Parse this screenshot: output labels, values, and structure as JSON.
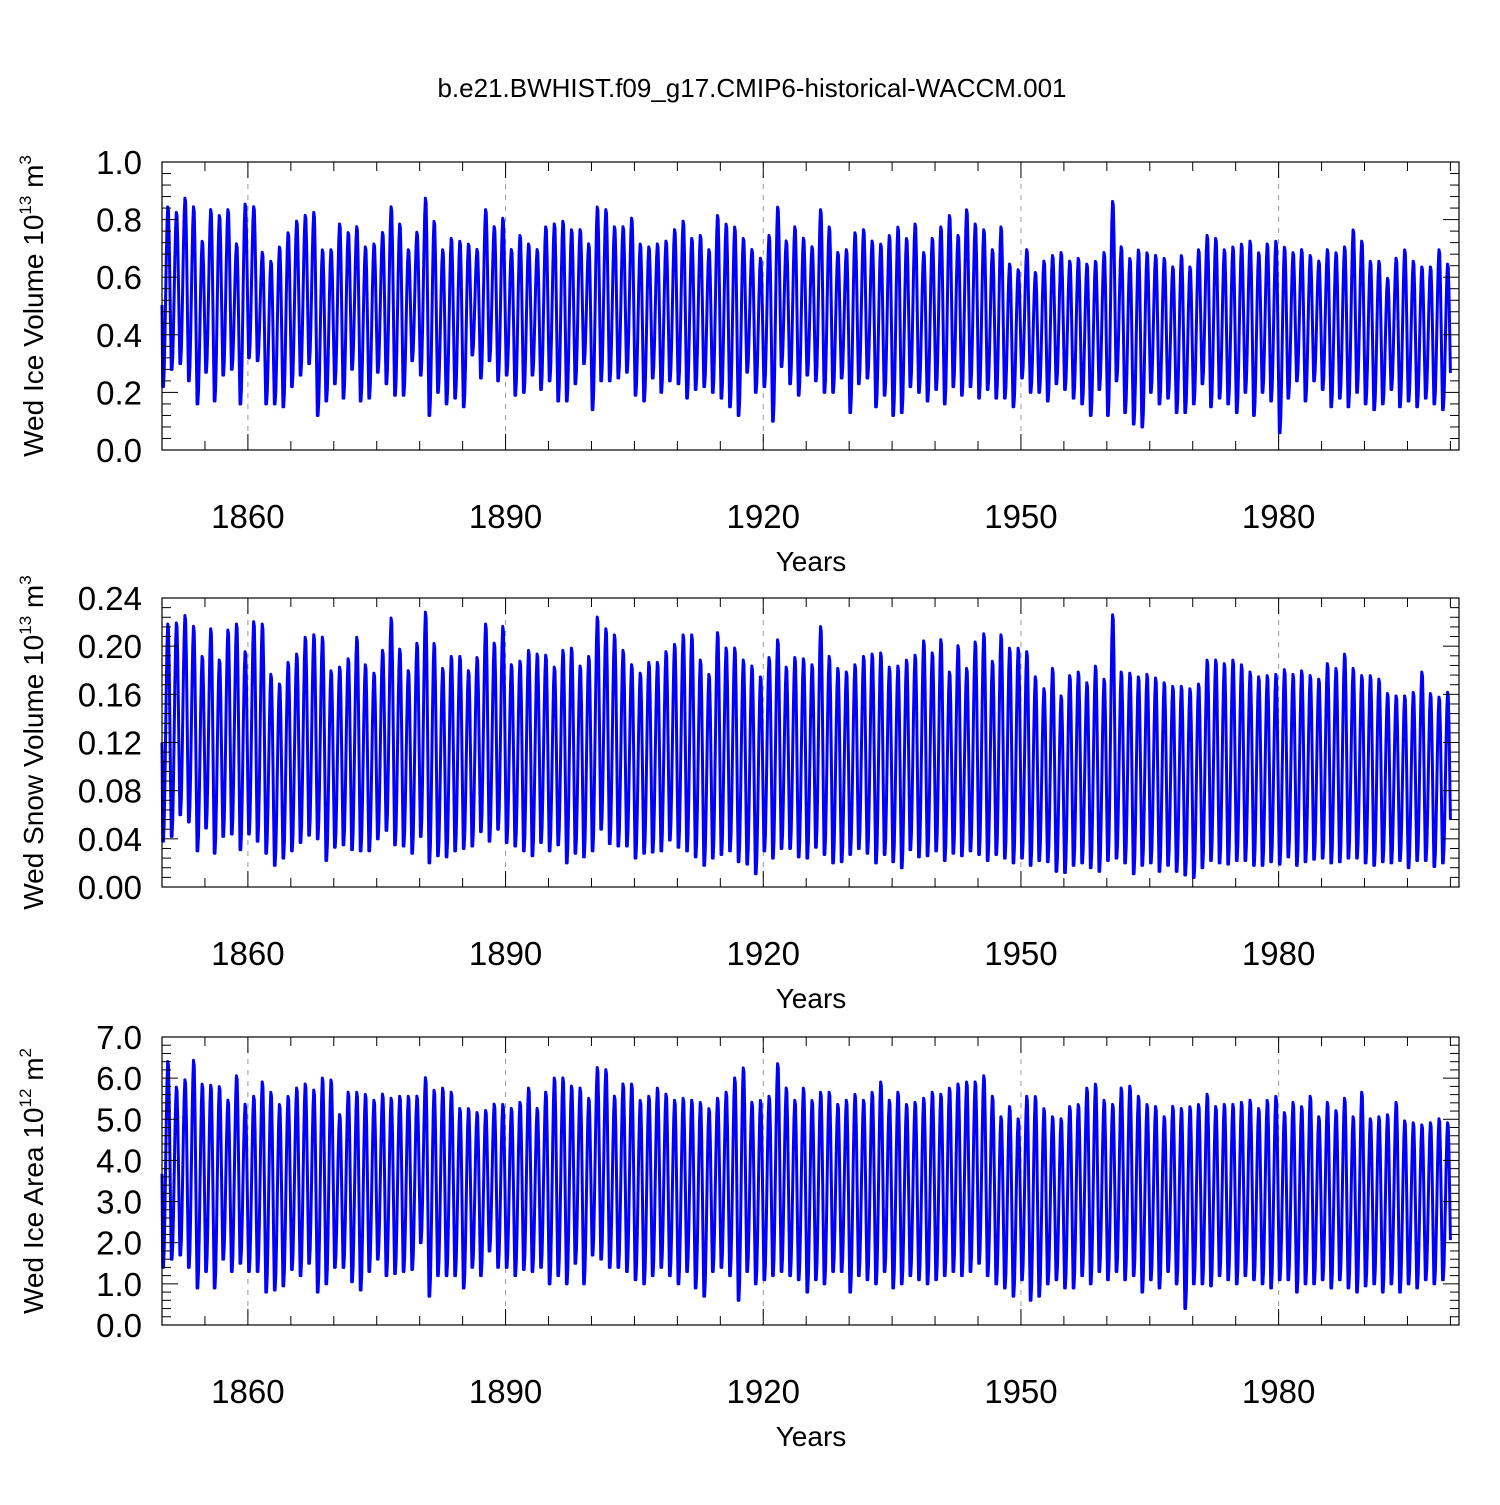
{
  "title": "b.e21.BWHIST.f09_g17.CMIP6-historical-WACCM.001",
  "colors": {
    "series": "#0000ff",
    "axis": "#000000",
    "grid": "#999999",
    "background": "#ffffff"
  },
  "chart_data": [
    {
      "type": "line",
      "name": "ice-volume",
      "ylabel": "Wed Ice Volume 10",
      "ylabel_exp": "13",
      "ylabel_unit": " m",
      "ylabel_unit_exp": "3",
      "xlabel": "Years",
      "xlim": [
        1850,
        2001
      ],
      "ylim": [
        0.0,
        1.0
      ],
      "yticks": [
        0.0,
        0.2,
        0.4,
        0.6,
        0.8,
        1.0
      ],
      "ytick_labels": [
        "0.0",
        "0.2",
        "0.4",
        "0.6",
        "0.8",
        "1.0"
      ],
      "xticks": [
        1860,
        1890,
        1920,
        1950,
        1980
      ],
      "xtick_labels": [
        "1860",
        "1890",
        "1920",
        "1950",
        "1980"
      ],
      "grid_x": true,
      "series": [
        {
          "name": "Wed Ice Volume",
          "x_start": 1850,
          "x_step": 1,
          "annual_max": [
            0.85,
            0.83,
            0.88,
            0.85,
            0.73,
            0.84,
            0.82,
            0.84,
            0.72,
            0.86,
            0.85,
            0.69,
            0.66,
            0.71,
            0.76,
            0.8,
            0.82,
            0.83,
            0.7,
            0.7,
            0.79,
            0.76,
            0.78,
            0.71,
            0.72,
            0.76,
            0.85,
            0.79,
            0.7,
            0.76,
            0.88,
            0.8,
            0.7,
            0.74,
            0.73,
            0.72,
            0.7,
            0.84,
            0.78,
            0.81,
            0.7,
            0.75,
            0.72,
            0.7,
            0.78,
            0.79,
            0.8,
            0.77,
            0.77,
            0.72,
            0.85,
            0.84,
            0.78,
            0.78,
            0.81,
            0.72,
            0.71,
            0.72,
            0.73,
            0.77,
            0.8,
            0.74,
            0.75,
            0.7,
            0.82,
            0.79,
            0.78,
            0.74,
            0.7,
            0.67,
            0.75,
            0.85,
            0.73,
            0.78,
            0.74,
            0.71,
            0.84,
            0.78,
            0.69,
            0.7,
            0.76,
            0.77,
            0.73,
            0.72,
            0.75,
            0.78,
            0.74,
            0.79,
            0.69,
            0.74,
            0.78,
            0.82,
            0.75,
            0.84,
            0.79,
            0.77,
            0.7,
            0.78,
            0.65,
            0.63,
            0.7,
            0.62,
            0.66,
            0.68,
            0.69,
            0.66,
            0.67,
            0.65,
            0.66,
            0.69,
            0.87,
            0.71,
            0.67,
            0.7,
            0.69,
            0.68,
            0.67,
            0.64,
            0.68,
            0.64,
            0.7,
            0.75,
            0.74,
            0.7,
            0.71,
            0.72,
            0.73,
            0.69,
            0.72,
            0.73,
            0.71,
            0.69,
            0.7,
            0.68,
            0.66,
            0.7,
            0.69,
            0.71,
            0.77,
            0.73,
            0.66,
            0.66,
            0.6,
            0.67,
            0.7,
            0.66,
            0.64,
            0.64,
            0.7,
            0.65
          ],
          "annual_min": [
            0.22,
            0.28,
            0.3,
            0.24,
            0.16,
            0.27,
            0.17,
            0.26,
            0.28,
            0.16,
            0.32,
            0.31,
            0.16,
            0.16,
            0.15,
            0.22,
            0.26,
            0.3,
            0.12,
            0.17,
            0.23,
            0.18,
            0.28,
            0.17,
            0.18,
            0.27,
            0.23,
            0.19,
            0.19,
            0.31,
            0.26,
            0.12,
            0.2,
            0.16,
            0.18,
            0.15,
            0.33,
            0.25,
            0.31,
            0.24,
            0.26,
            0.19,
            0.2,
            0.26,
            0.21,
            0.24,
            0.17,
            0.17,
            0.23,
            0.3,
            0.14,
            0.24,
            0.24,
            0.25,
            0.27,
            0.19,
            0.17,
            0.25,
            0.2,
            0.24,
            0.23,
            0.18,
            0.21,
            0.22,
            0.2,
            0.18,
            0.15,
            0.12,
            0.27,
            0.2,
            0.22,
            0.1,
            0.29,
            0.23,
            0.19,
            0.26,
            0.24,
            0.2,
            0.2,
            0.25,
            0.13,
            0.23,
            0.25,
            0.15,
            0.19,
            0.12,
            0.13,
            0.22,
            0.2,
            0.17,
            0.21,
            0.16,
            0.22,
            0.19,
            0.22,
            0.18,
            0.21,
            0.18,
            0.18,
            0.15,
            0.25,
            0.2,
            0.2,
            0.17,
            0.23,
            0.21,
            0.18,
            0.16,
            0.12,
            0.21,
            0.12,
            0.24,
            0.13,
            0.09,
            0.08,
            0.2,
            0.16,
            0.18,
            0.13,
            0.13,
            0.16,
            0.23,
            0.15,
            0.18,
            0.16,
            0.13,
            0.2,
            0.12,
            0.2,
            0.17,
            0.06,
            0.18,
            0.24,
            0.17,
            0.24,
            0.21,
            0.15,
            0.18,
            0.15,
            0.2,
            0.16,
            0.14,
            0.16,
            0.21,
            0.15,
            0.17,
            0.15,
            0.18,
            0.16,
            0.14,
            0.13,
            0.18
          ]
        }
      ]
    },
    {
      "type": "line",
      "name": "snow-volume",
      "ylabel": "Wed Snow Volume 10",
      "ylabel_exp": "13",
      "ylabel_unit": " m",
      "ylabel_unit_exp": "3",
      "xlabel": "Years",
      "xlim": [
        1850,
        2001
      ],
      "ylim": [
        0.0,
        0.24
      ],
      "yticks": [
        0.0,
        0.04,
        0.08,
        0.12,
        0.16,
        0.2,
        0.24
      ],
      "ytick_labels": [
        "0.00",
        "0.04",
        "0.08",
        "0.12",
        "0.16",
        "0.20",
        "0.24"
      ],
      "xticks": [
        1860,
        1890,
        1920,
        1950,
        1980
      ],
      "xtick_labels": [
        "1860",
        "1890",
        "1920",
        "1950",
        "1980"
      ],
      "grid_x": true,
      "series": [
        {
          "name": "Wed Snow Volume",
          "x_start": 1850,
          "x_step": 1,
          "annual_max": [
            0.22,
            0.221,
            0.227,
            0.218,
            0.193,
            0.216,
            0.19,
            0.215,
            0.22,
            0.197,
            0.222,
            0.22,
            0.178,
            0.17,
            0.188,
            0.195,
            0.209,
            0.211,
            0.209,
            0.181,
            0.184,
            0.191,
            0.209,
            0.186,
            0.179,
            0.198,
            0.225,
            0.199,
            0.181,
            0.204,
            0.23,
            0.204,
            0.183,
            0.193,
            0.193,
            0.181,
            0.192,
            0.22,
            0.204,
            0.218,
            0.186,
            0.189,
            0.198,
            0.195,
            0.194,
            0.184,
            0.198,
            0.2,
            0.185,
            0.193,
            0.226,
            0.216,
            0.211,
            0.198,
            0.186,
            0.179,
            0.188,
            0.188,
            0.197,
            0.203,
            0.211,
            0.211,
            0.19,
            0.178,
            0.213,
            0.2,
            0.2,
            0.19,
            0.185,
            0.176,
            0.192,
            0.207,
            0.184,
            0.192,
            0.191,
            0.186,
            0.218,
            0.193,
            0.183,
            0.18,
            0.186,
            0.193,
            0.195,
            0.196,
            0.184,
            0.185,
            0.19,
            0.194,
            0.206,
            0.196,
            0.207,
            0.18,
            0.202,
            0.183,
            0.205,
            0.212,
            0.189,
            0.211,
            0.2,
            0.2,
            0.197,
            0.176,
            0.166,
            0.183,
            0.16,
            0.177,
            0.18,
            0.171,
            0.185,
            0.174,
            0.228,
            0.18,
            0.179,
            0.176,
            0.178,
            0.175,
            0.171,
            0.168,
            0.168,
            0.166,
            0.17,
            0.19,
            0.19,
            0.187,
            0.19,
            0.186,
            0.18,
            0.176,
            0.177,
            0.178,
            0.182,
            0.178,
            0.181,
            0.177,
            0.174,
            0.187,
            0.183,
            0.195,
            0.183,
            0.177,
            0.177,
            0.174,
            0.162,
            0.16,
            0.16,
            0.163,
            0.18,
            0.162,
            0.159,
            0.163
          ],
          "annual_min": [
            0.038,
            0.042,
            0.06,
            0.054,
            0.03,
            0.049,
            0.028,
            0.042,
            0.044,
            0.031,
            0.044,
            0.038,
            0.028,
            0.018,
            0.024,
            0.03,
            0.037,
            0.043,
            0.04,
            0.022,
            0.033,
            0.035,
            0.031,
            0.03,
            0.03,
            0.04,
            0.047,
            0.035,
            0.034,
            0.028,
            0.042,
            0.02,
            0.026,
            0.025,
            0.03,
            0.032,
            0.034,
            0.046,
            0.038,
            0.048,
            0.037,
            0.034,
            0.03,
            0.026,
            0.037,
            0.03,
            0.035,
            0.02,
            0.028,
            0.025,
            0.03,
            0.048,
            0.036,
            0.034,
            0.034,
            0.024,
            0.028,
            0.029,
            0.03,
            0.039,
            0.033,
            0.03,
            0.025,
            0.018,
            0.024,
            0.027,
            0.03,
            0.021,
            0.019,
            0.011,
            0.03,
            0.024,
            0.032,
            0.032,
            0.025,
            0.024,
            0.033,
            0.027,
            0.02,
            0.021,
            0.027,
            0.032,
            0.028,
            0.02,
            0.027,
            0.021,
            0.016,
            0.031,
            0.025,
            0.026,
            0.03,
            0.022,
            0.028,
            0.026,
            0.03,
            0.027,
            0.022,
            0.027,
            0.024,
            0.02,
            0.024,
            0.018,
            0.022,
            0.021,
            0.013,
            0.012,
            0.018,
            0.02,
            0.016,
            0.013,
            0.022,
            0.024,
            0.02,
            0.011,
            0.018,
            0.02,
            0.013,
            0.018,
            0.013,
            0.01,
            0.008,
            0.016,
            0.022,
            0.02,
            0.019,
            0.022,
            0.022,
            0.018,
            0.018,
            0.021,
            0.019,
            0.025,
            0.018,
            0.021,
            0.023,
            0.024,
            0.02,
            0.021,
            0.024,
            0.024,
            0.02,
            0.018,
            0.021,
            0.02,
            0.022,
            0.016,
            0.022,
            0.022,
            0.017,
            0.02
          ]
        }
      ]
    },
    {
      "type": "line",
      "name": "ice-area",
      "ylabel": "Wed Ice Area 10",
      "ylabel_exp": "12",
      "ylabel_unit": " m",
      "ylabel_unit_exp": "2",
      "xlabel": "Years",
      "xlim": [
        1850,
        2001
      ],
      "ylim": [
        0.0,
        7.0
      ],
      "yticks": [
        0,
        1,
        2,
        3,
        4,
        5,
        6,
        7
      ],
      "ytick_labels": [
        "0.0",
        "1.0",
        "2.0",
        "3.0",
        "4.0",
        "5.0",
        "6.0",
        "7.0"
      ],
      "xticks": [
        1860,
        1890,
        1920,
        1950,
        1980
      ],
      "xtick_labels": [
        "1860",
        "1890",
        "1920",
        "1950",
        "1980"
      ],
      "grid_x": true,
      "series": [
        {
          "name": "Wed Ice Area",
          "x_start": 1850,
          "x_step": 1,
          "annual_max": [
            6.45,
            5.82,
            6.0,
            6.48,
            5.9,
            5.87,
            5.84,
            5.5,
            6.1,
            5.4,
            5.6,
            5.95,
            5.7,
            5.4,
            5.6,
            5.8,
            5.9,
            5.75,
            6.05,
            6.0,
            5.15,
            5.7,
            5.7,
            5.65,
            5.5,
            5.65,
            5.55,
            5.6,
            5.6,
            5.6,
            6.05,
            5.75,
            5.8,
            5.7,
            5.3,
            5.3,
            5.2,
            5.25,
            5.4,
            5.4,
            5.3,
            5.45,
            5.8,
            5.3,
            5.7,
            6.05,
            6.05,
            5.85,
            5.8,
            5.55,
            6.3,
            6.25,
            5.6,
            5.9,
            5.9,
            5.5,
            5.6,
            5.8,
            5.65,
            5.5,
            5.55,
            5.5,
            5.45,
            5.3,
            5.55,
            5.7,
            6.05,
            6.3,
            5.45,
            5.5,
            5.6,
            6.4,
            5.8,
            5.5,
            5.8,
            5.5,
            5.7,
            5.7,
            5.4,
            5.5,
            5.65,
            5.5,
            5.7,
            5.95,
            5.5,
            5.7,
            5.4,
            5.45,
            5.55,
            5.7,
            5.65,
            5.8,
            5.9,
            5.95,
            5.95,
            6.1,
            5.6,
            5.1,
            5.35,
            5.05,
            5.6,
            5.6,
            5.3,
            5.1,
            5.05,
            5.35,
            5.4,
            5.8,
            5.9,
            5.5,
            5.4,
            5.8,
            5.85,
            5.6,
            5.4,
            5.35,
            5.1,
            5.35,
            5.3,
            5.35,
            5.4,
            5.65,
            5.35,
            5.4,
            5.4,
            5.45,
            5.5,
            5.3,
            5.5,
            5.6,
            5.2,
            5.45,
            5.35,
            5.6,
            5.1,
            5.45,
            5.25,
            5.55,
            5.1,
            5.7,
            5.05,
            5.1,
            5.15,
            5.45,
            5.0,
            4.95,
            4.9,
            4.95,
            5.05,
            4.95
          ],
          "annual_min": [
            1.4,
            1.6,
            1.7,
            1.4,
            0.9,
            1.3,
            0.9,
            1.6,
            1.3,
            1.5,
            1.3,
            1.3,
            0.8,
            0.85,
            0.95,
            1.35,
            1.2,
            1.5,
            0.8,
            1.0,
            1.4,
            1.4,
            1.05,
            0.85,
            1.3,
            1.6,
            1.2,
            1.25,
            1.3,
            1.35,
            2.0,
            0.7,
            1.2,
            1.2,
            1.2,
            0.9,
            1.4,
            1.2,
            1.8,
            1.4,
            1.4,
            1.2,
            1.35,
            1.3,
            1.4,
            1.0,
            1.2,
            1.0,
            1.5,
            1.0,
            1.7,
            1.6,
            1.4,
            1.4,
            1.3,
            1.1,
            1.0,
            1.2,
            1.4,
            1.2,
            1.0,
            1.3,
            0.9,
            0.7,
            1.3,
            1.4,
            1.2,
            0.6,
            1.3,
            1.0,
            1.1,
            1.2,
            1.3,
            1.2,
            1.1,
            0.8,
            1.1,
            1.0,
            1.3,
            1.3,
            0.8,
            1.2,
            1.1,
            1.0,
            1.3,
            0.9,
            1.0,
            1.2,
            1.1,
            1.0,
            1.1,
            1.2,
            1.3,
            1.2,
            1.3,
            1.5,
            1.2,
            1.0,
            0.9,
            0.7,
            1.1,
            0.6,
            0.7,
            1.0,
            1.1,
            0.9,
            0.9,
            1.2,
            1.0,
            1.3,
            1.1,
            1.3,
            1.1,
            1.2,
            0.8,
            1.1,
            0.9,
            1.3,
            1.0,
            0.4,
            1.0,
            1.0,
            0.95,
            1.2,
            1.1,
            1.0,
            1.2,
            1.1,
            1.0,
            0.9,
            1.1,
            1.1,
            0.8,
            1.0,
            1.0,
            1.1,
            0.9,
            1.1,
            0.9,
            0.8,
            0.95,
            1.0,
            0.8,
            1.0,
            0.8,
            1.0,
            0.9,
            1.1,
            1.0,
            1.1
          ]
        }
      ]
    }
  ]
}
